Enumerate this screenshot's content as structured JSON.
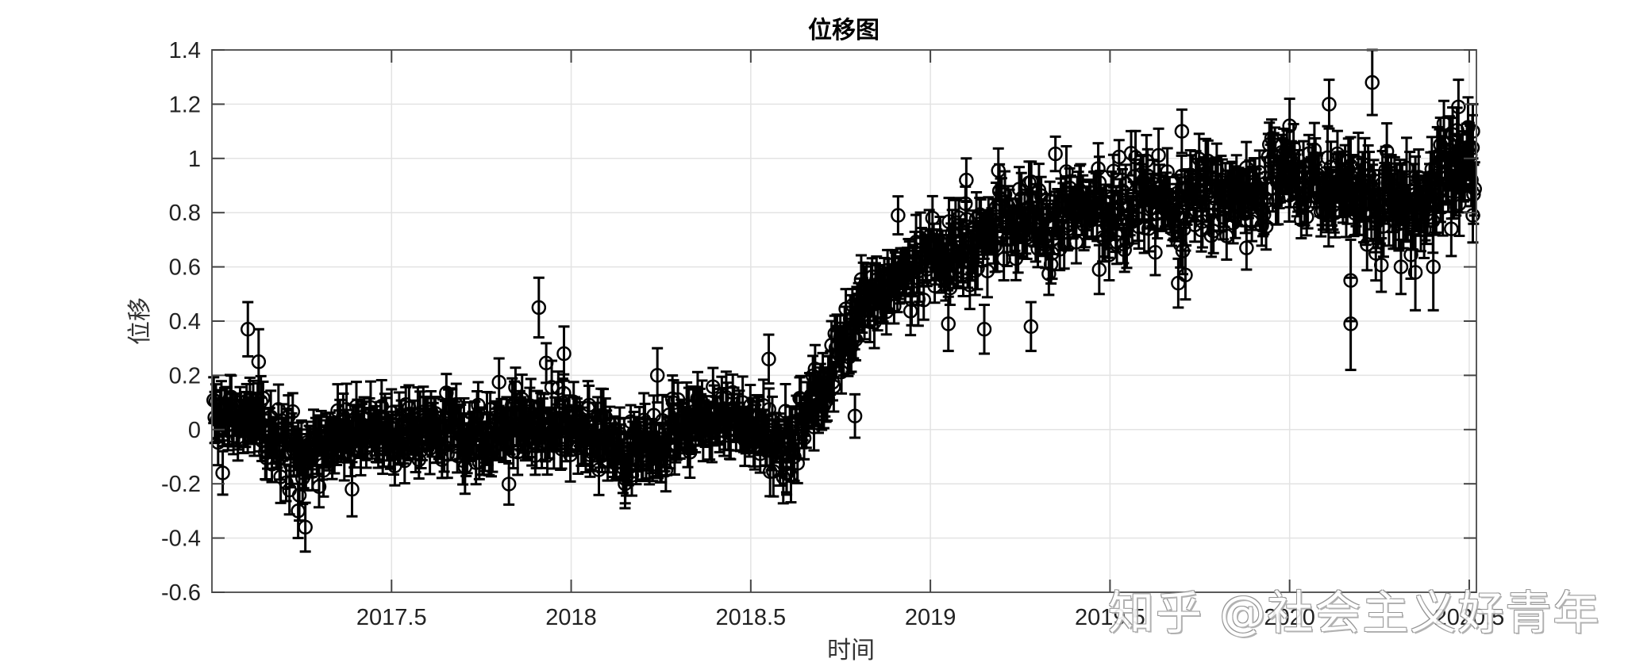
{
  "chart_data": {
    "type": "scatter",
    "subtype": "errorbar",
    "title": "位移图",
    "xlabel": "时间",
    "ylabel": "位移",
    "xlim": [
      2017.0,
      2020.52
    ],
    "ylim": [
      -0.6,
      1.4
    ],
    "xticks": [
      2017.5,
      2018,
      2018.5,
      2019,
      2019.5,
      2020,
      2020.5
    ],
    "xtick_labels": [
      "2017.5",
      "2018",
      "2018.5",
      "2019",
      "2019.5",
      "2020",
      "2020.5"
    ],
    "yticks": [
      -0.6,
      -0.4,
      -0.2,
      0,
      0.2,
      0.4,
      0.6,
      0.8,
      1.0,
      1.2,
      1.4
    ],
    "ytick_labels": [
      "-0.6",
      "-0.4",
      "-0.2",
      "0",
      "0.2",
      "0.4",
      "0.6",
      "0.8",
      "1",
      "1.2",
      "1.4"
    ],
    "grid": true,
    "legend": null,
    "marker": "open-circle",
    "color": "#000000",
    "error_bar_halfwidth_approx": 0.1,
    "trend": {
      "x": [
        2017.0,
        2017.1,
        2017.15,
        2017.25,
        2017.4,
        2017.7,
        2017.9,
        2018.0,
        2018.15,
        2018.3,
        2018.5,
        2018.6,
        2018.7,
        2018.8,
        2018.9,
        2019.0,
        2019.1,
        2019.25,
        2019.4,
        2019.6,
        2019.8,
        2020.0,
        2020.2,
        2020.35,
        2020.45,
        2020.52
      ],
      "y": [
        0.02,
        0.05,
        0.0,
        -0.08,
        -0.02,
        -0.02,
        0.0,
        0.02,
        -0.08,
        0.0,
        0.05,
        -0.08,
        0.15,
        0.45,
        0.55,
        0.62,
        0.7,
        0.75,
        0.82,
        0.82,
        0.88,
        0.92,
        0.85,
        0.82,
        0.98,
        0.98
      ]
    },
    "notable_points": [
      {
        "x": 2017.1,
        "y": 0.37,
        "err": 0.1
      },
      {
        "x": 2017.13,
        "y": 0.25,
        "err": 0.12
      },
      {
        "x": 2017.03,
        "y": -0.16,
        "err": 0.08
      },
      {
        "x": 2017.24,
        "y": -0.3,
        "err": 0.1
      },
      {
        "x": 2017.26,
        "y": -0.36,
        "err": 0.09
      },
      {
        "x": 2017.39,
        "y": -0.22,
        "err": 0.1
      },
      {
        "x": 2017.91,
        "y": 0.45,
        "err": 0.11
      },
      {
        "x": 2017.98,
        "y": 0.28,
        "err": 0.1
      },
      {
        "x": 2018.15,
        "y": -0.2,
        "err": 0.09
      },
      {
        "x": 2018.24,
        "y": 0.2,
        "err": 0.1
      },
      {
        "x": 2018.55,
        "y": 0.26,
        "err": 0.09
      },
      {
        "x": 2018.6,
        "y": -0.16,
        "err": 0.08
      },
      {
        "x": 2018.79,
        "y": 0.05,
        "err": 0.08
      },
      {
        "x": 2018.8,
        "y": 0.46,
        "err": 0.08
      },
      {
        "x": 2018.91,
        "y": 0.79,
        "err": 0.07
      },
      {
        "x": 2019.05,
        "y": 0.39,
        "err": 0.1
      },
      {
        "x": 2019.1,
        "y": 0.92,
        "err": 0.08
      },
      {
        "x": 2019.15,
        "y": 0.37,
        "err": 0.09
      },
      {
        "x": 2019.28,
        "y": 0.38,
        "err": 0.09
      },
      {
        "x": 2019.47,
        "y": 0.59,
        "err": 0.09
      },
      {
        "x": 2019.7,
        "y": 1.1,
        "err": 0.08
      },
      {
        "x": 2019.69,
        "y": 0.54,
        "err": 0.09
      },
      {
        "x": 2019.71,
        "y": 0.57,
        "err": 0.09
      },
      {
        "x": 2019.88,
        "y": 0.67,
        "err": 0.08
      },
      {
        "x": 2020.0,
        "y": 1.12,
        "err": 0.1
      },
      {
        "x": 2020.11,
        "y": 1.2,
        "err": 0.09
      },
      {
        "x": 2020.17,
        "y": 0.55,
        "err": 0.15
      },
      {
        "x": 2020.17,
        "y": 0.39,
        "err": 0.17
      },
      {
        "x": 2020.23,
        "y": 1.28,
        "err": 0.12
      },
      {
        "x": 2020.24,
        "y": 0.65,
        "err": 0.1
      },
      {
        "x": 2020.31,
        "y": 0.6,
        "err": 0.1
      },
      {
        "x": 2020.35,
        "y": 0.58,
        "err": 0.14
      },
      {
        "x": 2020.4,
        "y": 0.6,
        "err": 0.16
      },
      {
        "x": 2020.42,
        "y": 1.05,
        "err": 0.1
      },
      {
        "x": 2020.45,
        "y": 0.74,
        "err": 0.1
      },
      {
        "x": 2020.47,
        "y": 1.19,
        "err": 0.1
      },
      {
        "x": 2020.51,
        "y": 1.1,
        "err": 0.1
      },
      {
        "x": 2020.51,
        "y": 0.79,
        "err": 0.1
      }
    ],
    "noise_sigma": 0.06,
    "n_points": 1150,
    "seed": 7
  },
  "watermark": "知乎 @社会主义好青年"
}
